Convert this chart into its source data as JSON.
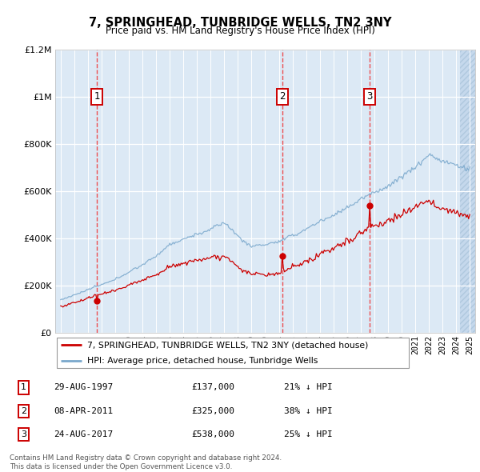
{
  "title": "7, SPRINGHEAD, TUNBRIDGE WELLS, TN2 3NY",
  "subtitle": "Price paid vs. HM Land Registry's House Price Index (HPI)",
  "ylim": [
    0,
    1200000
  ],
  "yticks": [
    0,
    200000,
    400000,
    600000,
    800000,
    1000000,
    1200000
  ],
  "ytick_labels": [
    "£0",
    "£200K",
    "£400K",
    "£600K",
    "£800K",
    "£1M",
    "£1.2M"
  ],
  "xmin": 1994.6,
  "xmax": 2025.4,
  "background_color": "#dce9f5",
  "transactions": [
    {
      "num": 1,
      "date": "29-AUG-1997",
      "year": 1997.66,
      "price": 137000,
      "label": "£137,000",
      "pct": "21%",
      "dir": "↓"
    },
    {
      "num": 2,
      "date": "08-APR-2011",
      "year": 2011.27,
      "price": 325000,
      "label": "£325,000",
      "pct": "38%",
      "dir": "↓"
    },
    {
      "num": 3,
      "date": "24-AUG-2017",
      "year": 2017.65,
      "price": 538000,
      "label": "£538,000",
      "pct": "25%",
      "dir": "↓"
    }
  ],
  "legend_line1": "7, SPRINGHEAD, TUNBRIDGE WELLS, TN2 3NY (detached house)",
  "legend_line2": "HPI: Average price, detached house, Tunbridge Wells",
  "footer1": "Contains HM Land Registry data © Crown copyright and database right 2024.",
  "footer2": "This data is licensed under the Open Government Licence v3.0.",
  "red_line_color": "#cc0000",
  "blue_line_color": "#7aa8cc",
  "marker_color": "#cc0000"
}
